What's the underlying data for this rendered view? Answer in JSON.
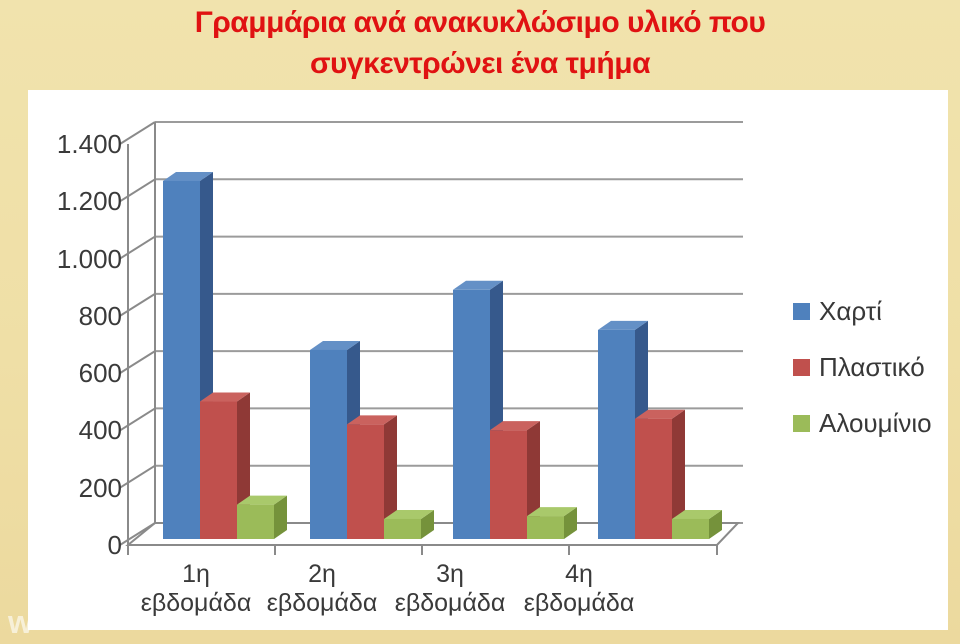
{
  "title": {
    "line1": "Γραμμάρια ανά ανακυκλώσιμο υλικό που",
    "line2": "συγκεντρώνει ένα τμήμα",
    "color": "#e01212"
  },
  "watermark": "w",
  "chart_data": {
    "type": "bar",
    "style": "3d-clustered",
    "title": "Γραμμάρια ανά ανακυκλώσιμο υλικό που συγκεντρώνει ένα τμήμα",
    "categories": [
      "1η εβδομάδα",
      "2η εβδομάδα",
      "3η εβδομάδα",
      "4η εβδομάδα"
    ],
    "series": [
      {
        "id": "paper",
        "name": "Χαρτί",
        "values": [
          1250,
          660,
          870,
          730
        ],
        "color": "#4f81bd",
        "side_color": "#36598c",
        "top_color": "#6490c6"
      },
      {
        "id": "plastic",
        "name": "Πλαστικό",
        "values": [
          480,
          400,
          380,
          420
        ],
        "color": "#c0504d",
        "side_color": "#8f3936",
        "top_color": "#ca625e"
      },
      {
        "id": "aluminium",
        "name": "Αλουμίνιο",
        "values": [
          120,
          70,
          80,
          70
        ],
        "color": "#9bbb59",
        "side_color": "#75923b",
        "top_color": "#a9c96b"
      }
    ],
    "ylim": [
      0,
      1400
    ],
    "ytick_step": 200,
    "ytick_labels": [
      "0",
      "200",
      "400",
      "600",
      "800",
      "1.000",
      "1.200",
      "1.400"
    ],
    "xlabel": "",
    "ylabel": "",
    "grid": true,
    "legend_position": "right",
    "gridline_color": "#9b9b9b",
    "axis_color": "#8a8a8a"
  }
}
